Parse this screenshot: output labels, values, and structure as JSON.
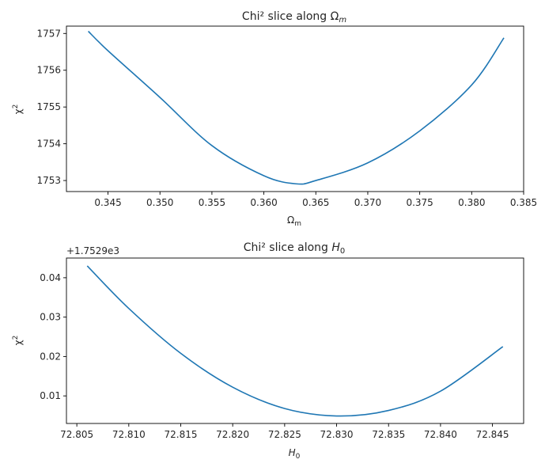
{
  "chart_data": [
    {
      "type": "line",
      "title": "Chi² slice along Ω",
      "title_sub": "m",
      "xlabel": "Ω",
      "xlabel_sub": "m",
      "ylabel": "χ",
      "ylabel_sup": "2",
      "xlim": [
        0.341,
        0.385
      ],
      "ylim": [
        1752.7,
        1757.2
      ],
      "xticks": [
        0.345,
        0.35,
        0.355,
        0.36,
        0.365,
        0.37,
        0.375,
        0.38,
        0.385
      ],
      "xtick_labels": [
        "0.345",
        "0.350",
        "0.355",
        "0.360",
        "0.365",
        "0.370",
        "0.375",
        "0.380",
        "0.385"
      ],
      "yticks": [
        1753,
        1754,
        1755,
        1756,
        1757
      ],
      "ytick_labels": [
        "1753",
        "1754",
        "1755",
        "1756",
        "1757"
      ],
      "series": [
        {
          "color": "#1f77b4",
          "x": [
            0.3431,
            0.345,
            0.35,
            0.355,
            0.36,
            0.3631,
            0.365,
            0.37,
            0.375,
            0.38,
            0.3831
          ],
          "y": [
            1757.06,
            1756.53,
            1755.26,
            1753.95,
            1753.13,
            1752.91,
            1753.0,
            1753.48,
            1754.35,
            1755.6,
            1756.88
          ]
        }
      ]
    },
    {
      "type": "line",
      "title": "Chi² slice along ",
      "title_italic": "H",
      "title_sub": "0",
      "xlabel": "",
      "xlabel_italic": "H",
      "xlabel_sub": "0",
      "ylabel": "χ",
      "ylabel_sup": "2",
      "y_offset_label": "+1.7529e3",
      "xlim": [
        72.804,
        72.848
      ],
      "ylim": [
        0.003,
        0.045
      ],
      "xticks": [
        72.805,
        72.81,
        72.815,
        72.82,
        72.825,
        72.83,
        72.835,
        72.84,
        72.845
      ],
      "xtick_labels": [
        "72.805",
        "72.810",
        "72.815",
        "72.820",
        "72.825",
        "72.830",
        "72.835",
        "72.840",
        "72.845"
      ],
      "yticks": [
        0.01,
        0.02,
        0.03,
        0.04
      ],
      "ytick_labels": [
        "0.01",
        "0.02",
        "0.03",
        "0.04"
      ],
      "series": [
        {
          "color": "#1f77b4",
          "x": [
            72.806,
            72.81,
            72.815,
            72.82,
            72.825,
            72.83,
            72.835,
            72.84,
            72.846
          ],
          "y": [
            0.043,
            0.0322,
            0.0208,
            0.0122,
            0.0068,
            0.0049,
            0.0063,
            0.0112,
            0.0225
          ]
        }
      ]
    }
  ]
}
